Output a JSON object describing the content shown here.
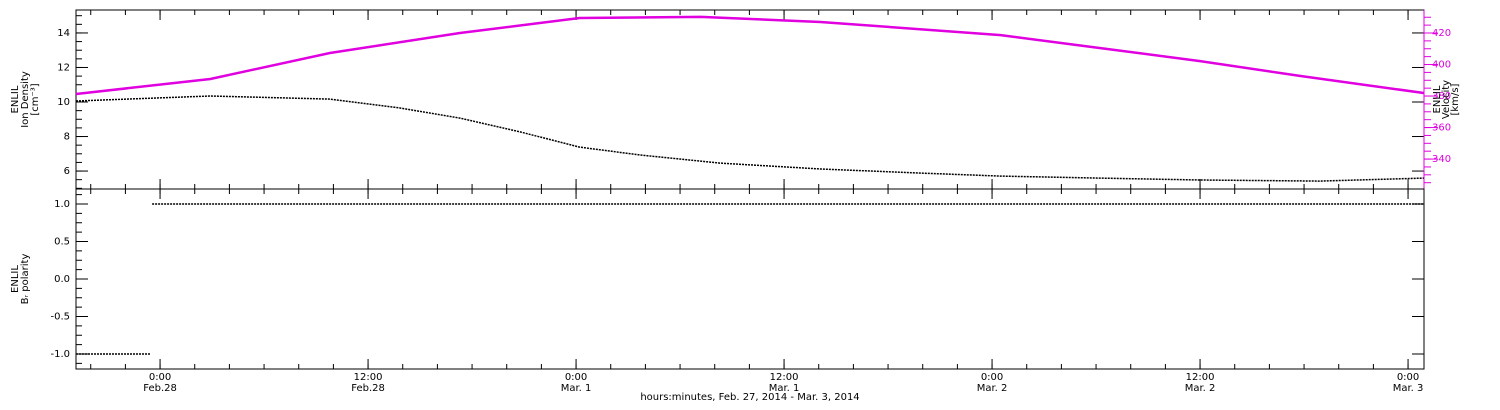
{
  "chart_data": [
    {
      "type": "line",
      "y_label": [
        "ENLIL",
        "Ion Density",
        "[cm⁻³]"
      ],
      "ylim": [
        4.96,
        15.33
      ],
      "yticks": [
        6,
        8,
        10,
        12,
        14
      ],
      "y2_label": [
        "ENLIL",
        "Velocity",
        "[km/s]"
      ],
      "y2lim": [
        321,
        434.6
      ],
      "y2ticks": [
        340,
        360,
        380,
        400,
        420
      ],
      "y2_color": "#e000e0",
      "xlim": [
        -4.85,
        72.92
      ],
      "series": [
        {
          "color": "#000000",
          "x": [
            -4.85,
            2.9,
            9.8,
            13.85,
            17.3,
            20.8,
            24.2,
            27.7,
            32.3,
            38.1,
            43.9,
            48.5,
            54.2,
            60.0,
            66.9,
            72.9
          ],
          "values": [
            10.06,
            10.35,
            10.17,
            9.65,
            9.07,
            8.26,
            7.39,
            6.93,
            6.46,
            6.12,
            5.88,
            5.71,
            5.59,
            5.48,
            5.42,
            5.59
          ]
        },
        {
          "color": "#e000e0",
          "axis": "y2",
          "x": [
            -4.85,
            2.9,
            9.8,
            17.3,
            24.2,
            31.2,
            38.1,
            48.5,
            54.2,
            60.0,
            65.8,
            72.9
          ],
          "values": [
            381.3,
            390.8,
            407.3,
            420,
            429.5,
            430.2,
            427,
            418.7,
            410.5,
            402.2,
            392.7,
            381.9
          ]
        }
      ]
    },
    {
      "type": "line",
      "y_label": [
        "ENLIL",
        "Bᵣ polarity"
      ],
      "ylim": [
        -1.2,
        1.2
      ],
      "yticks": [
        {
          "value": -1,
          "label": "-1.0"
        },
        -0.5,
        {
          "value": 0,
          "label": "0.0"
        },
        0.5,
        {
          "value": 1,
          "label": "1.0"
        }
      ],
      "xlim": [
        -4.85,
        72.92
      ],
      "xticks": [
        {
          "value": 0,
          "label": "0:00\nFeb.28"
        },
        {
          "value": 12,
          "label": "12:00\nFeb.28"
        },
        {
          "value": 24,
          "label": "0:00\nMar. 1"
        },
        {
          "value": 36,
          "label": "12:00\nMar. 1"
        },
        {
          "value": 48,
          "label": "0:00\nMar. 2"
        },
        {
          "value": 60,
          "label": "12:00\nMar. 2"
        },
        {
          "value": 72,
          "label": "0:00\nMar. 3"
        }
      ],
      "x_label": "hours:minutes, Feb. 27, 2014 - Mar.  3, 2014",
      "series": [
        {
          "color": "#000000",
          "x": [
            -4.85,
            -0.58,
            -0.52,
            -0.46,
            72.9
          ],
          "values": [
            -1,
            -1,
            null,
            1,
            1
          ]
        }
      ]
    }
  ]
}
